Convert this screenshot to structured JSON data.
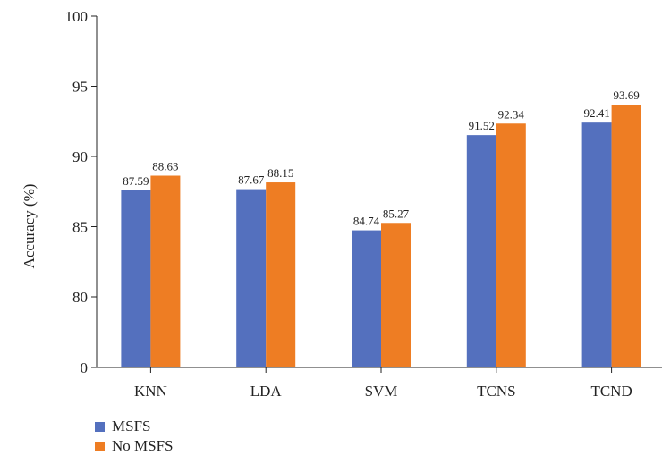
{
  "chart_data": {
    "type": "bar",
    "categories": [
      "KNN",
      "LDA",
      "SVM",
      "TCNS",
      "TCND"
    ],
    "series": [
      {
        "name": "MSFS",
        "values": [
          87.59,
          87.67,
          84.74,
          91.52,
          92.41
        ],
        "color": "#5470be"
      },
      {
        "name": "No MSFS",
        "values": [
          88.63,
          88.15,
          85.27,
          92.34,
          93.69
        ],
        "color": "#ee7d23"
      }
    ],
    "xlabel": "",
    "ylabel": "Accuracy (%)",
    "yticks": [
      "0",
      "80",
      "85",
      "90",
      "95",
      "100"
    ],
    "ylim": [
      75,
      100
    ],
    "axis_break": true,
    "grid": false,
    "legend_position": "bottom-left"
  }
}
